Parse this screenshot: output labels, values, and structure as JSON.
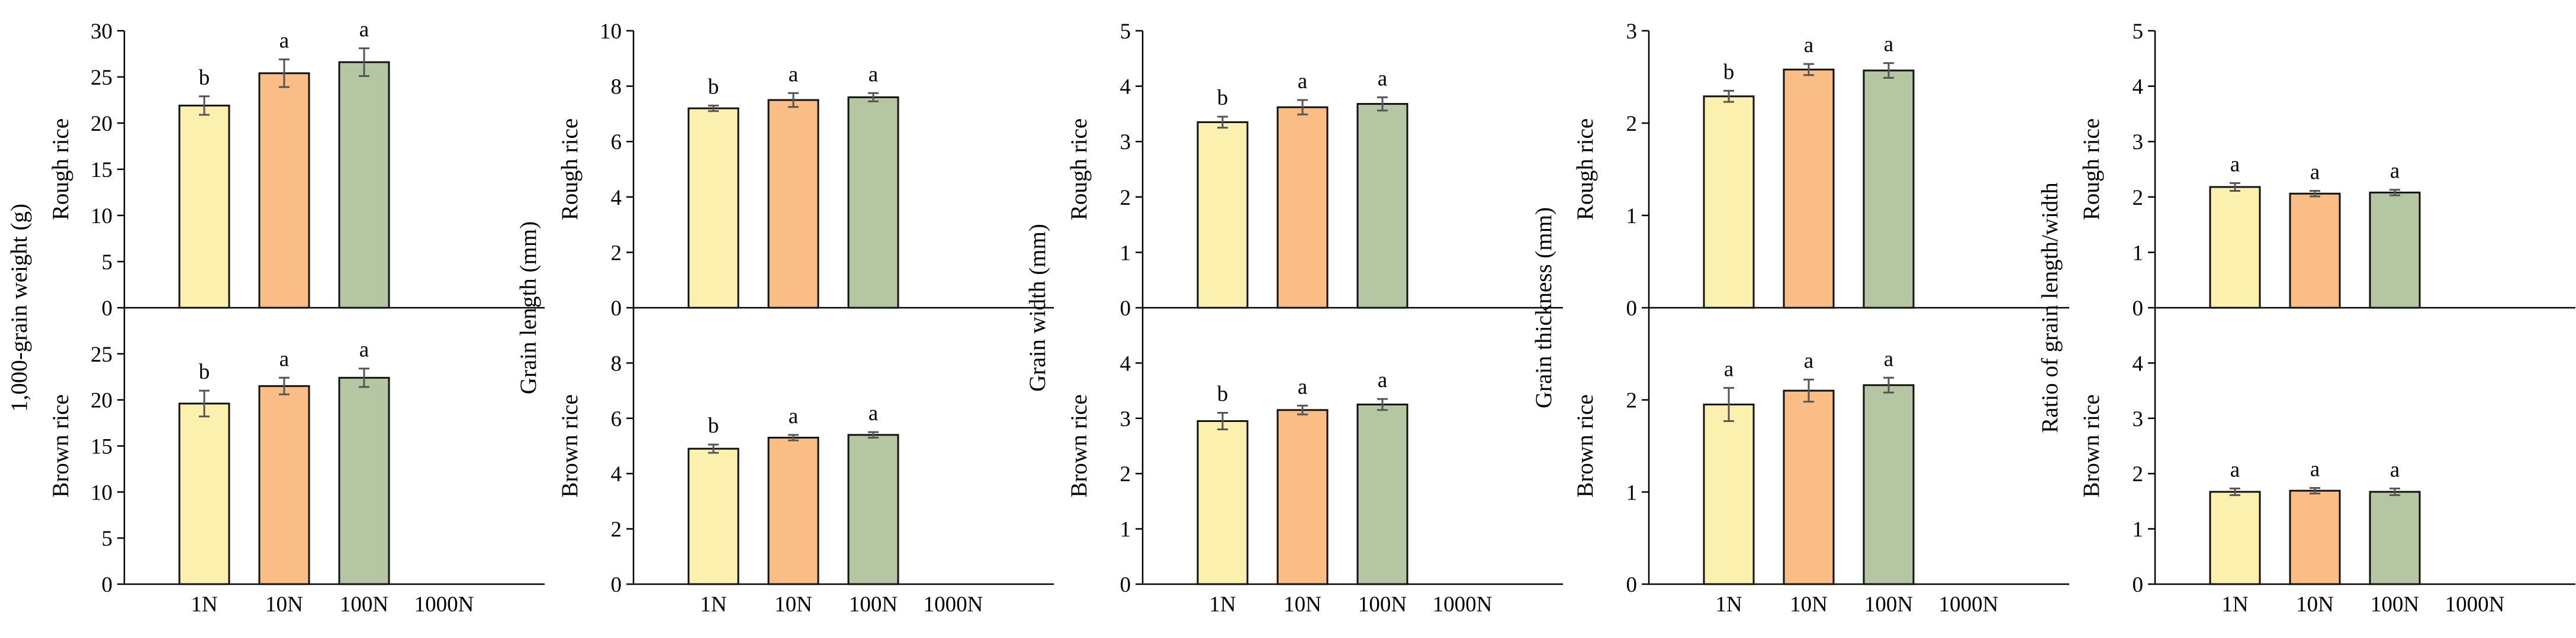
{
  "chart_data": [
    {
      "type": "bar",
      "y_title": "1,000-grain weight (g)",
      "categories": [
        "1N",
        "10N",
        "100N",
        "1000N"
      ],
      "panels": [
        {
          "row_label": "Rough rice",
          "ylim": [
            0,
            30
          ],
          "ticks": [
            0,
            5,
            10,
            15,
            20,
            25,
            30
          ],
          "tick_labels": [
            "0",
            "5",
            "10",
            "15",
            "20",
            "25",
            "30"
          ],
          "values": [
            21.9,
            25.4,
            26.6,
            null
          ],
          "errors": [
            1.0,
            1.5,
            1.5,
            null
          ],
          "significance": [
            "b",
            "a",
            "a",
            ""
          ]
        },
        {
          "row_label": "Brown rice",
          "ylim": [
            0,
            30
          ],
          "ticks": [
            0,
            5,
            10,
            15,
            20,
            25
          ],
          "tick_labels": [
            "0",
            "5",
            "10",
            "15",
            "20",
            "25"
          ],
          "values": [
            19.6,
            21.5,
            22.4,
            null
          ],
          "errors": [
            1.4,
            0.9,
            1.0,
            null
          ],
          "significance": [
            "b",
            "a",
            "a",
            ""
          ]
        }
      ]
    },
    {
      "type": "bar",
      "y_title": "Grain length (mm)",
      "categories": [
        "1N",
        "10N",
        "100N",
        "1000N"
      ],
      "panels": [
        {
          "row_label": "Rough rice",
          "ylim": [
            0,
            10
          ],
          "ticks": [
            0,
            2,
            4,
            6,
            8,
            10
          ],
          "tick_labels": [
            "0",
            "2",
            "4",
            "6",
            "8",
            "10"
          ],
          "values": [
            7.2,
            7.5,
            7.6,
            null
          ],
          "errors": [
            0.1,
            0.25,
            0.15,
            null
          ],
          "significance": [
            "b",
            "a",
            "a",
            ""
          ]
        },
        {
          "row_label": "Brown rice",
          "ylim": [
            0,
            10
          ],
          "ticks": [
            0,
            2,
            4,
            6,
            8
          ],
          "tick_labels": [
            "0",
            "2",
            "4",
            "6",
            "8"
          ],
          "values": [
            4.9,
            5.3,
            5.4,
            null
          ],
          "errors": [
            0.15,
            0.1,
            0.1,
            null
          ],
          "significance": [
            "b",
            "a",
            "a",
            ""
          ]
        }
      ]
    },
    {
      "type": "bar",
      "y_title": "Grain width (mm)",
      "categories": [
        "1N",
        "10N",
        "100N",
        "1000N"
      ],
      "panels": [
        {
          "row_label": "Rough rice",
          "ylim": [
            0,
            5
          ],
          "ticks": [
            0,
            1,
            2,
            3,
            4,
            5
          ],
          "tick_labels": [
            "0",
            "1",
            "2",
            "3",
            "4",
            "5"
          ],
          "values": [
            3.35,
            3.62,
            3.68,
            null
          ],
          "errors": [
            0.1,
            0.13,
            0.12,
            null
          ],
          "significance": [
            "b",
            "a",
            "a",
            ""
          ]
        },
        {
          "row_label": "Brown rice",
          "ylim": [
            0,
            5
          ],
          "ticks": [
            0,
            1,
            2,
            3,
            4
          ],
          "tick_labels": [
            "0",
            "1",
            "2",
            "3",
            "4"
          ],
          "values": [
            2.95,
            3.15,
            3.25,
            null
          ],
          "errors": [
            0.15,
            0.08,
            0.1,
            null
          ],
          "significance": [
            "b",
            "a",
            "a",
            ""
          ]
        }
      ]
    },
    {
      "type": "bar",
      "y_title": "Grain thickness (mm)",
      "categories": [
        "1N",
        "10N",
        "100N",
        "1000N"
      ],
      "panels": [
        {
          "row_label": "Rough rice",
          "ylim": [
            0,
            3
          ],
          "ticks": [
            0,
            1,
            2,
            3
          ],
          "tick_labels": [
            "0",
            "1",
            "2",
            "3"
          ],
          "values": [
            2.29,
            2.58,
            2.57,
            null
          ],
          "errors": [
            0.06,
            0.06,
            0.08,
            null
          ],
          "significance": [
            "b",
            "a",
            "a",
            ""
          ]
        },
        {
          "row_label": "Brown rice",
          "ylim": [
            0,
            3
          ],
          "ticks": [
            0,
            1,
            2
          ],
          "tick_labels": [
            "0",
            "1",
            "2"
          ],
          "values": [
            1.95,
            2.1,
            2.16,
            null
          ],
          "errors": [
            0.18,
            0.12,
            0.08,
            null
          ],
          "significance": [
            "a",
            "a",
            "a",
            ""
          ]
        }
      ]
    },
    {
      "type": "bar",
      "y_title": "Ratio of grain length/width",
      "categories": [
        "1N",
        "10N",
        "100N",
        "1000N"
      ],
      "panels": [
        {
          "row_label": "Rough rice",
          "ylim": [
            0,
            5
          ],
          "ticks": [
            0,
            1,
            2,
            3,
            4,
            5
          ],
          "tick_labels": [
            "0",
            "1",
            "2",
            "3",
            "4",
            "5"
          ],
          "values": [
            2.18,
            2.06,
            2.08,
            null
          ],
          "errors": [
            0.07,
            0.05,
            0.05,
            null
          ],
          "significance": [
            "a",
            "a",
            "a",
            ""
          ]
        },
        {
          "row_label": "Brown rice",
          "ylim": [
            0,
            5
          ],
          "ticks": [
            0,
            1,
            2,
            3,
            4
          ],
          "tick_labels": [
            "0",
            "1",
            "2",
            "3",
            "4"
          ],
          "values": [
            1.67,
            1.69,
            1.67,
            null
          ],
          "errors": [
            0.06,
            0.05,
            0.06,
            null
          ],
          "significance": [
            "a",
            "a",
            "a",
            ""
          ]
        }
      ]
    }
  ],
  "colors": {
    "bar_fills": [
      "#fbf0ae",
      "#fbbd86",
      "#b5c6a3"
    ],
    "bar_stroke": "#111111",
    "error_bar": "#555555"
  }
}
